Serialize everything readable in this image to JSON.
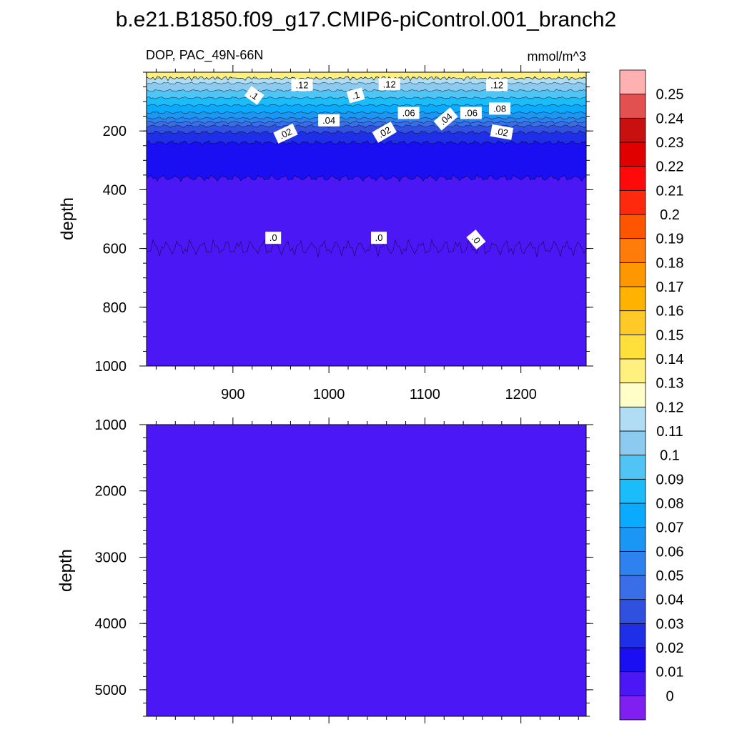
{
  "chart_data": {
    "type": "heatmap",
    "title": "b.e21.B1850.f09_g17.CMIP6-piControl.001_branch2",
    "variable": "DOP, PAC_49N-66N",
    "units": "mmol/m^3",
    "xlabel": "",
    "ylabel": "depth",
    "xlim": [
      810,
      1268
    ],
    "xticks": [
      "900",
      "1000",
      "1100",
      "1200"
    ],
    "panels": [
      {
        "name": "upper",
        "ylim": [
          0,
          1000
        ],
        "yticks": [
          "200",
          "400",
          "600",
          "800",
          "1000"
        ],
        "depth_profile": [
          {
            "depth": 10,
            "value": 0.125
          },
          {
            "depth": 25,
            "value": 0.115
          },
          {
            "depth": 50,
            "value": 0.105
          },
          {
            "depth": 75,
            "value": 0.095
          },
          {
            "depth": 100,
            "value": 0.085
          },
          {
            "depth": 125,
            "value": 0.075
          },
          {
            "depth": 150,
            "value": 0.065
          },
          {
            "depth": 170,
            "value": 0.05
          },
          {
            "depth": 190,
            "value": 0.035
          },
          {
            "depth": 220,
            "value": 0.025
          },
          {
            "depth": 260,
            "value": 0.015
          },
          {
            "depth": 400,
            "value": 0.008
          },
          {
            "depth": 600,
            "value": 0.0
          }
        ],
        "contour_labels": [
          {
            "text": ".12",
            "x": 972,
            "depth": 45
          },
          {
            "text": ".12",
            "x": 1063,
            "depth": 42
          },
          {
            "text": ".12",
            "x": 1175,
            "depth": 45
          },
          {
            "text": ".1",
            "x": 922,
            "depth": 80
          },
          {
            "text": ".1",
            "x": 1028,
            "depth": 80
          },
          {
            "text": ".08",
            "x": 1178,
            "depth": 125
          },
          {
            "text": ".06",
            "x": 1083,
            "depth": 140
          },
          {
            "text": ".06",
            "x": 1148,
            "depth": 140
          },
          {
            "text": ".04",
            "x": 1000,
            "depth": 165
          },
          {
            "text": ".04",
            "x": 1122,
            "depth": 160
          },
          {
            "text": ".02",
            "x": 955,
            "depth": 210
          },
          {
            "text": ".02",
            "x": 1058,
            "depth": 205
          },
          {
            "text": ".02",
            "x": 1180,
            "depth": 205
          },
          {
            "text": ".0",
            "x": 942,
            "depth": 565
          },
          {
            "text": ".0",
            "x": 1052,
            "depth": 565
          },
          {
            "text": ".0",
            "x": 1153,
            "depth": 570
          }
        ]
      },
      {
        "name": "lower",
        "ylim": [
          1000,
          5400
        ],
        "yticks": [
          "1000",
          "2000",
          "3000",
          "4000",
          "5000"
        ],
        "uniform_value": 0.0
      }
    ],
    "colorbar": {
      "levels": [
        "0",
        "0.01",
        "0.02",
        "0.03",
        "0.04",
        "0.05",
        "0.06",
        "0.07",
        "0.08",
        "0.09",
        "0.1",
        "0.11",
        "0.12",
        "0.13",
        "0.14",
        "0.15",
        "0.16",
        "0.17",
        "0.18",
        "0.19",
        "0.2",
        "0.21",
        "0.22",
        "0.23",
        "0.24",
        "0.25"
      ],
      "colors": [
        "#7f20f0",
        "#4c17f5",
        "#1a0ef2",
        "#1f2fe8",
        "#3050e0",
        "#3a6ee8",
        "#2e82f0",
        "#1a96f5",
        "#0aaaff",
        "#1abcfa",
        "#50c4f5",
        "#8ccbef",
        "#b0ddf3",
        "#fffdc8",
        "#fff080",
        "#ffe03a",
        "#ffca28",
        "#ffb300",
        "#ff9800",
        "#ff7c0a",
        "#ff5500",
        "#ff2a0e",
        "#ff0a0a",
        "#e00000",
        "#c81010",
        "#e25050",
        "#ffb0b0"
      ]
    }
  }
}
